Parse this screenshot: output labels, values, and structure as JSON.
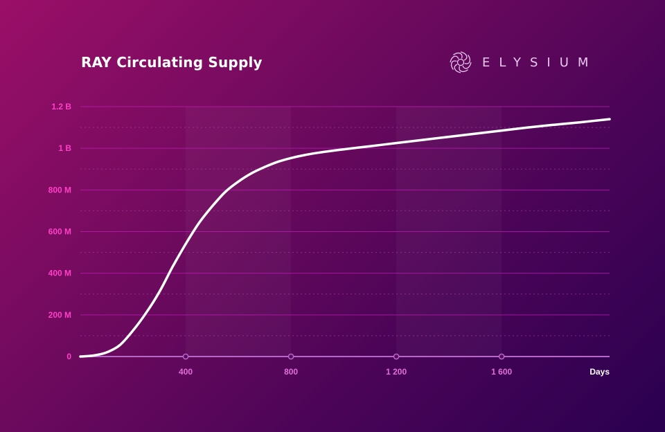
{
  "brand": {
    "name": "ELYSIUM",
    "logo_icon": "swirl-logo-icon",
    "text_color": "#e9c8f0"
  },
  "colors": {
    "line": "#ffffff",
    "major_grid": "#c21ab8",
    "minor_grid": "#b04cb0",
    "axis": "#b667c8",
    "ytick": "#ff3fc8",
    "xtick": "#e070d8"
  },
  "chart_data": {
    "type": "line",
    "title": "RAY Circulating Supply",
    "xlabel": "Days",
    "ylabel": "",
    "xlim": [
      0,
      2010
    ],
    "ylim": [
      0,
      1200000000
    ],
    "x_ticks": [
      400,
      800,
      1200,
      1600
    ],
    "x_tick_labels": [
      "400",
      "800",
      "1 200",
      "1 600"
    ],
    "y_ticks": [
      0,
      200000000,
      400000000,
      600000000,
      800000000,
      1000000000,
      1200000000
    ],
    "y_tick_labels": [
      "0",
      "200 M",
      "400 M",
      "600 M",
      "800 M",
      "1 B",
      "1.2 B"
    ],
    "grid": true,
    "series": [
      {
        "x": [
          0,
          50,
          100,
          150,
          200,
          250,
          300,
          350,
          400,
          450,
          500,
          550,
          600,
          650,
          700,
          750,
          800,
          850,
          900,
          950,
          1000,
          1100,
          1200,
          1300,
          1400,
          1500,
          1600,
          1700,
          1800,
          1900,
          2010
        ],
        "y": [
          0,
          5000000,
          20000000,
          55000000,
          125000000,
          210000000,
          310000000,
          430000000,
          540000000,
          640000000,
          720000000,
          790000000,
          840000000,
          880000000,
          910000000,
          935000000,
          953000000,
          967000000,
          978000000,
          987000000,
          995000000,
          1010000000,
          1025000000,
          1040000000,
          1055000000,
          1070000000,
          1085000000,
          1100000000,
          1113000000,
          1125000000,
          1140000000
        ]
      }
    ]
  }
}
